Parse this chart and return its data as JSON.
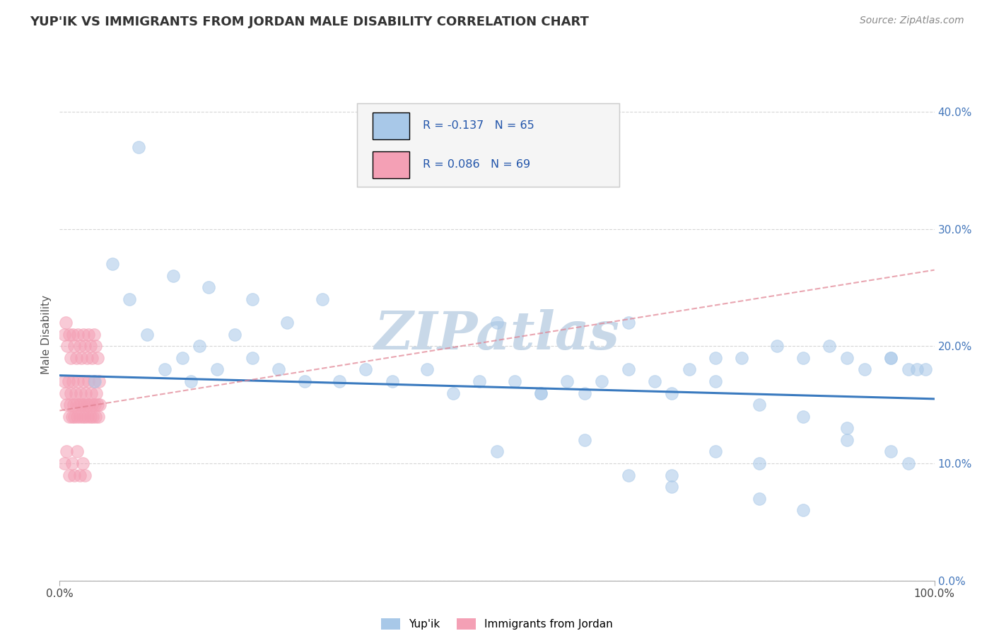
{
  "title": "YUP'IK VS IMMIGRANTS FROM JORDAN MALE DISABILITY CORRELATION CHART",
  "source": "Source: ZipAtlas.com",
  "ylabel": "Male Disability",
  "watermark": "ZIPatlas",
  "legend_r1": "R = -0.137",
  "legend_n1": "N = 65",
  "legend_r2": "R = 0.086",
  "legend_n2": "N = 69",
  "xmin": 0.0,
  "xmax": 1.0,
  "ymin": 0.0,
  "ymax": 0.42,
  "yticks": [
    0.0,
    0.1,
    0.2,
    0.3,
    0.4
  ],
  "xticks": [
    0.0,
    1.0
  ],
  "blue_color": "#a8c8e8",
  "pink_color": "#f4a0b5",
  "line_blue": "#3a7abf",
  "line_pink_dash": "#e08090",
  "grid_color": "#cccccc",
  "background": "#ffffff",
  "title_color": "#333333",
  "source_color": "#888888",
  "watermark_color": "#c8d8e8",
  "blue_scatter_x": [
    0.04,
    0.08,
    0.1,
    0.12,
    0.14,
    0.15,
    0.16,
    0.18,
    0.2,
    0.22,
    0.25,
    0.28,
    0.32,
    0.35,
    0.38,
    0.42,
    0.45,
    0.48,
    0.52,
    0.55,
    0.58,
    0.62,
    0.65,
    0.68,
    0.72,
    0.75,
    0.78,
    0.82,
    0.85,
    0.88,
    0.9,
    0.92,
    0.95,
    0.97,
    0.99,
    0.06,
    0.09,
    0.13,
    0.17,
    0.22,
    0.26,
    0.3,
    0.5,
    0.55,
    0.6,
    0.65,
    0.7,
    0.75,
    0.8,
    0.85,
    0.9,
    0.95,
    0.98,
    0.7,
    0.8,
    0.85,
    0.9,
    0.95,
    0.97,
    0.6,
    0.65,
    0.7,
    0.75,
    0.8,
    0.5
  ],
  "blue_scatter_y": [
    0.17,
    0.24,
    0.21,
    0.18,
    0.19,
    0.17,
    0.2,
    0.18,
    0.21,
    0.19,
    0.18,
    0.17,
    0.17,
    0.18,
    0.17,
    0.18,
    0.16,
    0.17,
    0.17,
    0.16,
    0.17,
    0.17,
    0.18,
    0.17,
    0.18,
    0.19,
    0.19,
    0.2,
    0.19,
    0.2,
    0.19,
    0.18,
    0.19,
    0.18,
    0.18,
    0.27,
    0.37,
    0.26,
    0.25,
    0.24,
    0.22,
    0.24,
    0.22,
    0.16,
    0.16,
    0.22,
    0.16,
    0.17,
    0.15,
    0.14,
    0.13,
    0.19,
    0.18,
    0.08,
    0.07,
    0.06,
    0.12,
    0.11,
    0.1,
    0.12,
    0.09,
    0.09,
    0.11,
    0.1,
    0.11
  ],
  "pink_scatter_x": [
    0.005,
    0.007,
    0.008,
    0.01,
    0.011,
    0.012,
    0.013,
    0.014,
    0.015,
    0.016,
    0.017,
    0.018,
    0.019,
    0.02,
    0.021,
    0.022,
    0.023,
    0.024,
    0.025,
    0.026,
    0.027,
    0.028,
    0.029,
    0.03,
    0.031,
    0.032,
    0.033,
    0.034,
    0.035,
    0.036,
    0.037,
    0.038,
    0.039,
    0.04,
    0.041,
    0.042,
    0.043,
    0.044,
    0.045,
    0.046,
    0.005,
    0.007,
    0.009,
    0.011,
    0.013,
    0.015,
    0.017,
    0.019,
    0.021,
    0.023,
    0.025,
    0.027,
    0.029,
    0.031,
    0.033,
    0.035,
    0.037,
    0.039,
    0.041,
    0.043,
    0.005,
    0.008,
    0.011,
    0.014,
    0.017,
    0.02,
    0.023,
    0.026,
    0.029
  ],
  "pink_scatter_y": [
    0.17,
    0.16,
    0.15,
    0.17,
    0.14,
    0.15,
    0.16,
    0.14,
    0.17,
    0.15,
    0.14,
    0.16,
    0.15,
    0.14,
    0.17,
    0.15,
    0.14,
    0.16,
    0.15,
    0.14,
    0.17,
    0.15,
    0.14,
    0.16,
    0.15,
    0.14,
    0.17,
    0.15,
    0.14,
    0.16,
    0.15,
    0.14,
    0.17,
    0.15,
    0.14,
    0.16,
    0.15,
    0.14,
    0.17,
    0.15,
    0.21,
    0.22,
    0.2,
    0.21,
    0.19,
    0.21,
    0.2,
    0.19,
    0.21,
    0.2,
    0.19,
    0.21,
    0.2,
    0.19,
    0.21,
    0.2,
    0.19,
    0.21,
    0.2,
    0.19,
    0.1,
    0.11,
    0.09,
    0.1,
    0.09,
    0.11,
    0.09,
    0.1,
    0.09
  ],
  "pink_line_x": [
    0.0,
    1.0
  ],
  "pink_line_y_start": 0.145,
  "pink_line_y_end": 0.265,
  "blue_line_x": [
    0.0,
    1.0
  ],
  "blue_line_y_start": 0.175,
  "blue_line_y_end": 0.155
}
